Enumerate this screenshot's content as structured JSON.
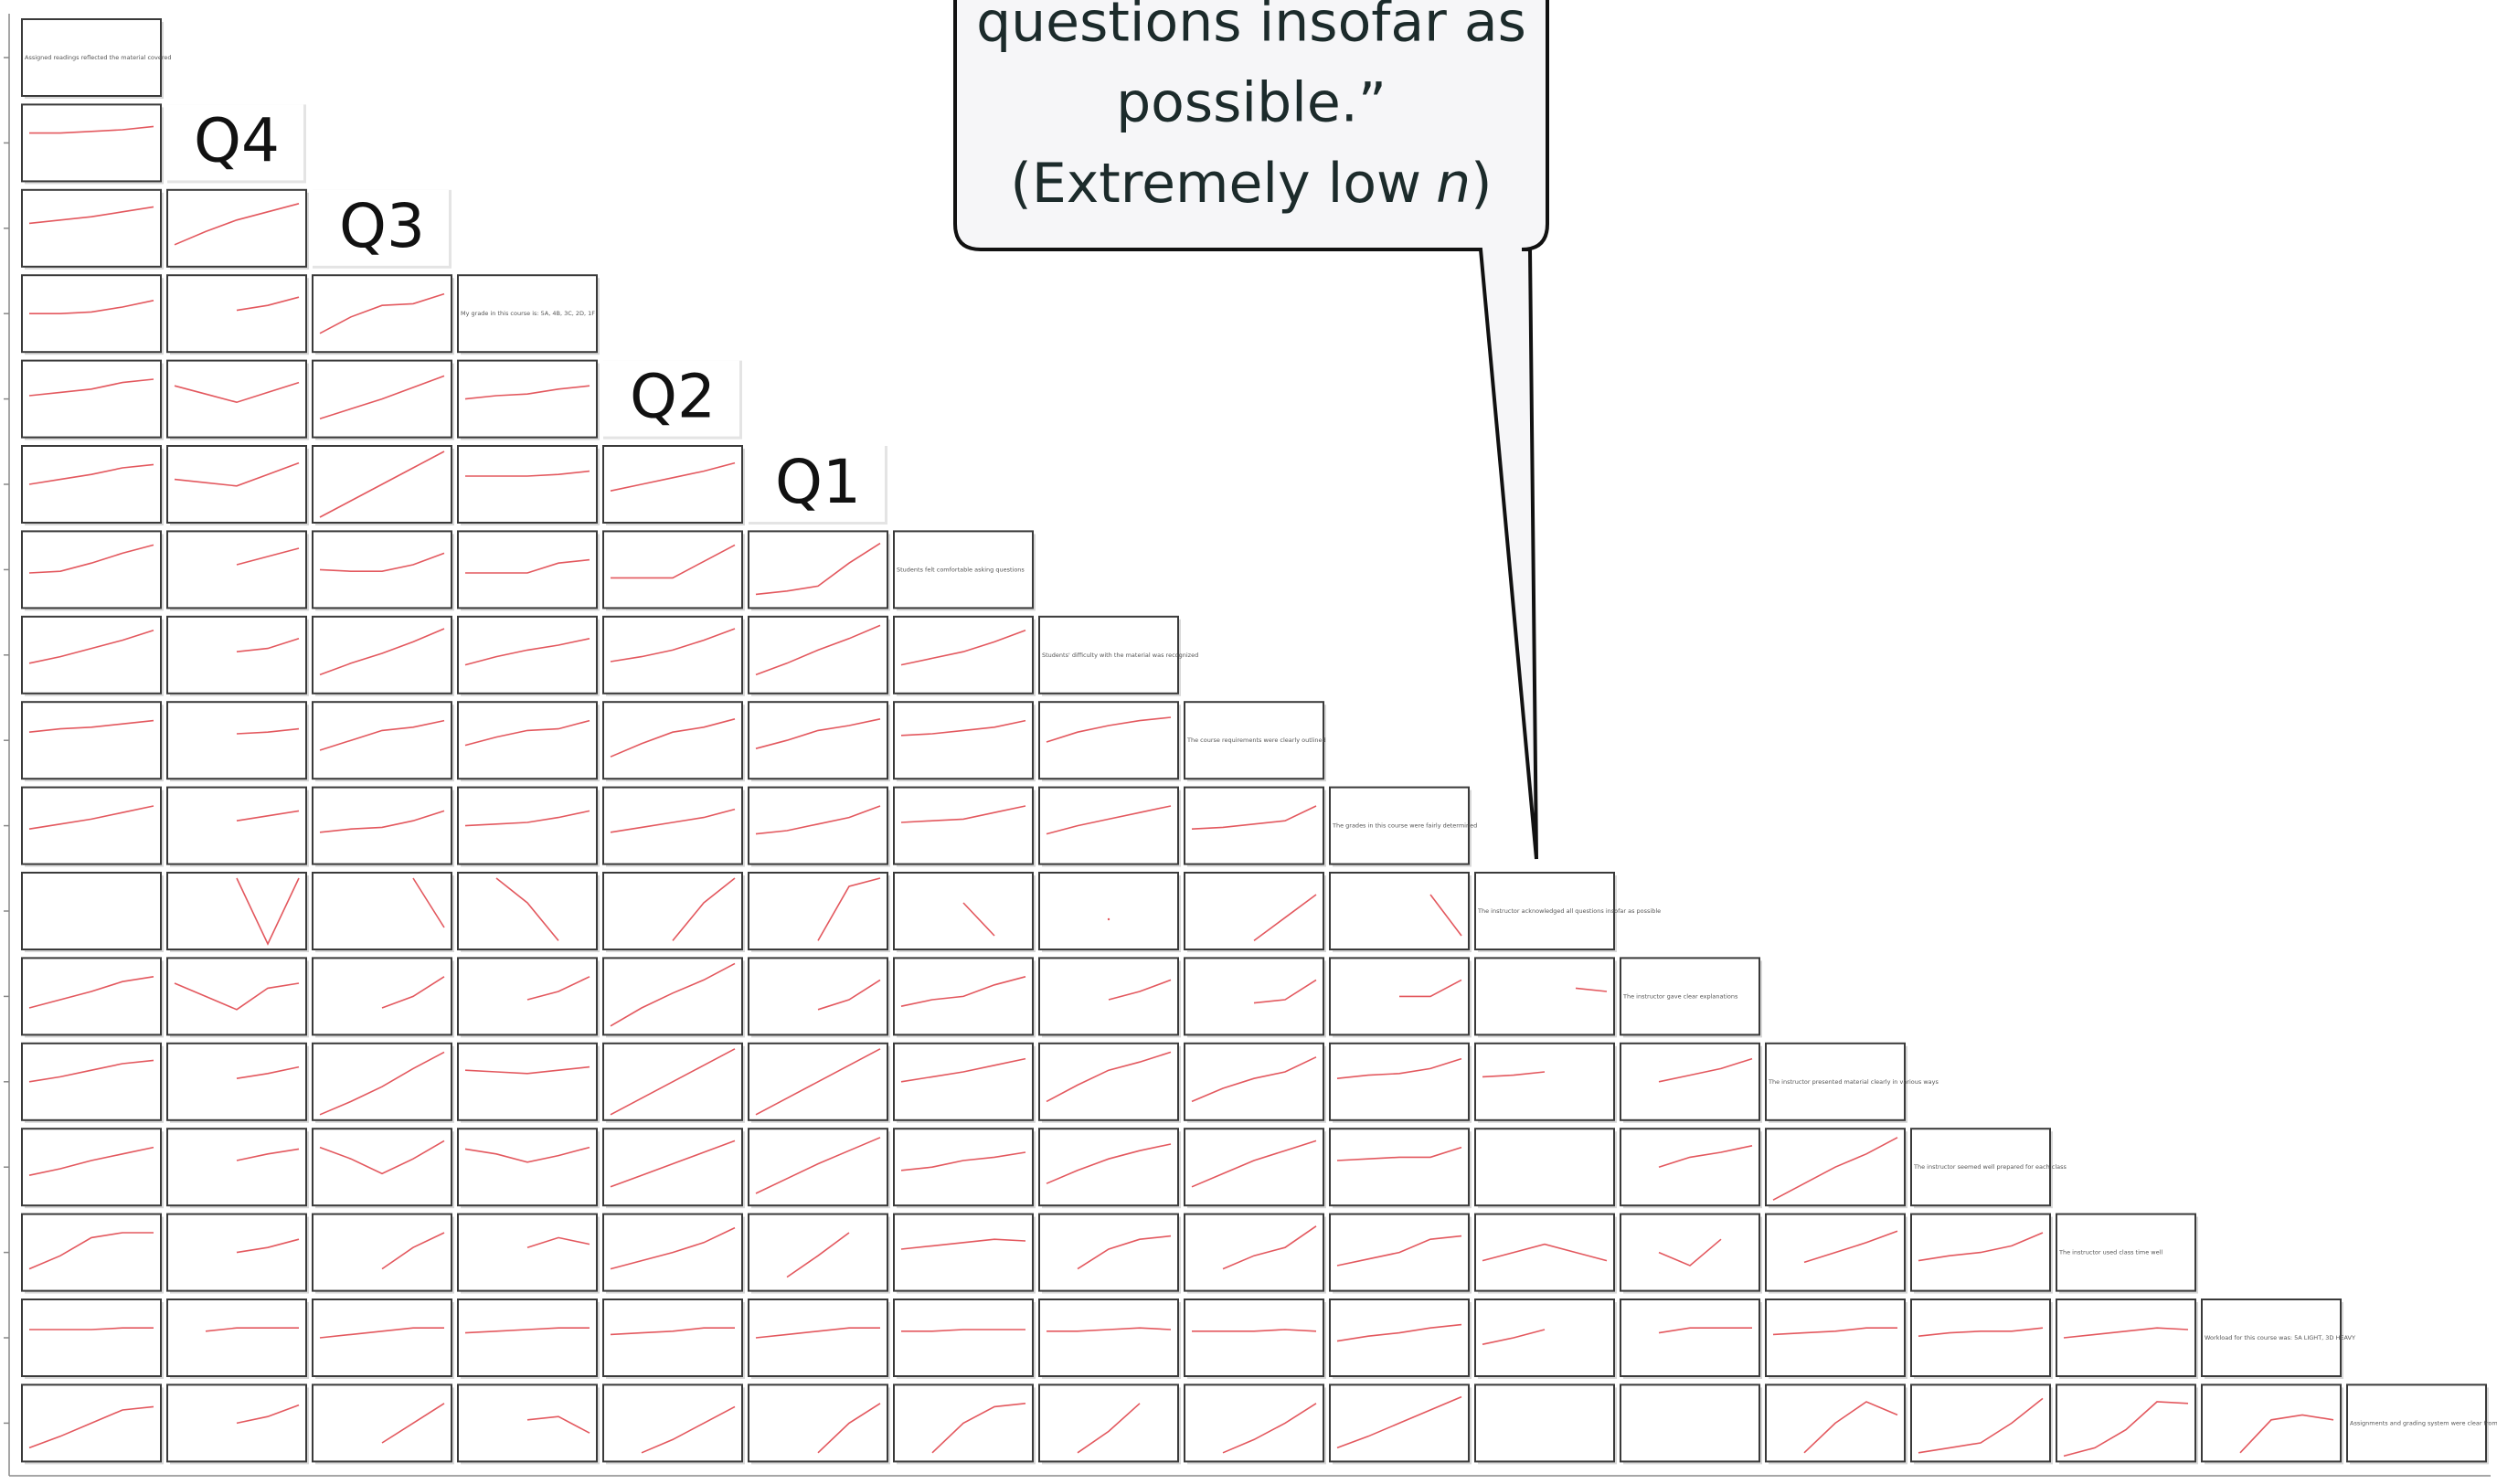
{
  "chart_data": {
    "type": "line-matrix",
    "ylim": [
      1,
      5
    ],
    "callout": {
      "lines": [
        "questions insofar as",
        "possible.”"
      ],
      "note": "(Extremely low",
      "note_italic": "n",
      "note_end": ")"
    },
    "rows": [
      {
        "diagonal": "Assigned readings reflected the material covered",
        "cells": []
      },
      {
        "label": "Q4",
        "cells": [
          [
            3.6,
            3.6,
            3.7,
            3.8,
            4
          ]
        ]
      },
      {
        "label": "Q3",
        "cells": [
          [
            3.3,
            3.5,
            3.7,
            4,
            4.3
          ],
          [
            2,
            2.8,
            3.5,
            4,
            4.5
          ]
        ]
      },
      {
        "diagonal": "My grade in this course is: 5A, 4B, 3C, 2D, 1F",
        "cells": [
          [
            3,
            3,
            3.1,
            3.4,
            3.8
          ],
          [
            null,
            null,
            3.2,
            3.5,
            4
          ],
          [
            1.8,
            2.8,
            3.5,
            3.6,
            4.2
          ]
        ]
      },
      {
        "label": "Q2",
        "cells": [
          [
            3.2,
            3.4,
            3.6,
            4,
            4.2
          ],
          [
            3.8,
            3.3,
            2.8,
            3.4,
            4
          ],
          [
            1.8,
            2.4,
            3,
            3.7,
            4.4
          ],
          [
            3,
            3.2,
            3.3,
            3.6,
            3.8
          ]
        ]
      },
      {
        "label": "Q1",
        "cells": [
          [
            3,
            3.3,
            3.6,
            4,
            4.2
          ],
          [
            3.3,
            3.1,
            2.9,
            3.6,
            4.3
          ],
          [
            1,
            2,
            3,
            4,
            5
          ],
          [
            3.5,
            3.5,
            3.5,
            3.6,
            3.8
          ],
          [
            2.6,
            3,
            3.4,
            3.8,
            4.3
          ]
        ]
      },
      {
        "diagonal": "Students felt comfortable asking questions",
        "cells": [
          [
            2.8,
            2.9,
            3.4,
            4,
            4.5
          ],
          [
            null,
            null,
            3.3,
            3.8,
            4.3
          ],
          [
            3,
            2.9,
            2.9,
            3.3,
            4
          ],
          [
            2.8,
            2.8,
            2.8,
            3.4,
            3.6
          ],
          [
            2.5,
            2.5,
            2.5,
            3.5,
            4.5
          ],
          [
            1.5,
            1.7,
            2,
            3.4,
            4.6
          ]
        ]
      },
      {
        "diagonal": "Students' difficulty with the material was recognized",
        "cells": [
          [
            2.5,
            2.9,
            3.4,
            3.9,
            4.5
          ],
          [
            null,
            null,
            3.2,
            3.4,
            4
          ],
          [
            1.8,
            2.5,
            3.1,
            3.8,
            4.6
          ],
          [
            2.4,
            2.9,
            3.3,
            3.6,
            4
          ],
          [
            2.6,
            2.9,
            3.3,
            3.9,
            4.6
          ],
          [
            1.8,
            2.5,
            3.3,
            4,
            4.8
          ],
          [
            2.4,
            2.8,
            3.2,
            3.8,
            4.5
          ]
        ]
      },
      {
        "diagonal": "The course requirements were clearly outlined",
        "cells": [
          [
            3.5,
            3.7,
            3.8,
            4,
            4.2
          ],
          [
            null,
            null,
            3.4,
            3.5,
            3.7
          ],
          [
            2.4,
            3,
            3.6,
            3.8,
            4.2
          ],
          [
            2.7,
            3.2,
            3.6,
            3.7,
            4.2
          ],
          [
            2,
            2.8,
            3.5,
            3.8,
            4.3
          ],
          [
            2.5,
            3,
            3.6,
            3.9,
            4.3
          ],
          [
            3.3,
            3.4,
            3.6,
            3.8,
            4.2
          ],
          [
            2.9,
            3.5,
            3.9,
            4.2,
            4.4
          ]
        ]
      },
      {
        "diagonal": "The grades in this course were fairly determined",
        "cells": [
          [
            2.8,
            3.1,
            3.4,
            3.8,
            4.2
          ],
          [
            null,
            null,
            3.3,
            3.6,
            3.9
          ],
          [
            2.6,
            2.8,
            2.9,
            3.3,
            3.9
          ],
          [
            3,
            3.1,
            3.2,
            3.5,
            3.9
          ],
          [
            2.6,
            2.9,
            3.2,
            3.5,
            4
          ],
          [
            2.5,
            2.7,
            3.1,
            3.5,
            4.2
          ],
          [
            3.2,
            3.3,
            3.4,
            3.8,
            4.2
          ],
          [
            2.5,
            3,
            3.4,
            3.8,
            4.2
          ],
          [
            2.8,
            2.9,
            3.1,
            3.3,
            4.2
          ]
        ]
      },
      {
        "diagonal": "The instructor acknowledged all questions insofar as possible",
        "cells": [
          [
            null,
            null,
            null,
            null,
            null
          ],
          [
            null,
            null,
            5,
            1,
            5
          ],
          [
            null,
            null,
            null,
            5,
            2
          ],
          [
            null,
            5,
            3.5,
            1.2,
            null
          ],
          [
            null,
            null,
            1.2,
            3.5,
            5
          ],
          [
            null,
            null,
            1.2,
            4.5,
            5
          ],
          [
            null,
            null,
            3.5,
            1.5,
            null
          ],
          [
            null,
            null,
            2.5,
            null,
            null
          ],
          [
            null,
            null,
            1.2,
            2.6,
            4
          ],
          [
            null,
            null,
            null,
            4,
            1.5
          ]
        ]
      },
      {
        "diagonal": "The instructor gave clear explanations",
        "cells": [
          [
            2.3,
            2.8,
            3.3,
            3.9,
            4.2
          ],
          [
            3.8,
            3,
            2.2,
            3.5,
            3.8
          ],
          [
            null,
            null,
            2.3,
            3,
            4.2
          ],
          [
            null,
            null,
            2.8,
            3.3,
            4.2
          ],
          [
            1.2,
            2.3,
            3.2,
            4,
            5
          ],
          [
            null,
            null,
            2.2,
            2.8,
            4
          ],
          [
            2.4,
            2.8,
            3,
            3.7,
            4.2
          ],
          [
            null,
            null,
            2.8,
            3.3,
            4
          ],
          [
            null,
            null,
            2.6,
            2.8,
            4
          ],
          [
            null,
            null,
            3,
            3,
            4
          ],
          [
            null,
            null,
            null,
            3.5,
            3.3
          ]
        ]
      },
      {
        "diagonal": "The instructor presented material clearly in various ways",
        "cells": [
          [
            3,
            3.3,
            3.7,
            4.1,
            4.3
          ],
          [
            null,
            null,
            3.2,
            3.5,
            3.9
          ],
          [
            1,
            1.8,
            2.7,
            3.8,
            4.8
          ],
          [
            3.7,
            3.6,
            3.5,
            3.7,
            3.9
          ],
          [
            1,
            2,
            3,
            4,
            5
          ],
          [
            1,
            2,
            3,
            4,
            5
          ],
          [
            3,
            3.3,
            3.6,
            4,
            4.4
          ],
          [
            1.8,
            2.8,
            3.7,
            4.2,
            4.8
          ],
          [
            1.8,
            2.6,
            3.2,
            3.6,
            4.5
          ],
          [
            3.2,
            3.4,
            3.5,
            3.8,
            4.4
          ],
          [
            3.3,
            3.4,
            3.6,
            null,
            null
          ],
          [
            null,
            3,
            3.4,
            3.8,
            4.4
          ]
        ]
      },
      {
        "diagonal": "The instructor seemed well prepared for each class",
        "cells": [
          [
            2.5,
            2.9,
            3.4,
            3.8,
            4.2
          ],
          [
            null,
            null,
            3.4,
            3.8,
            4.1
          ],
          [
            4.2,
            3.5,
            2.6,
            3.5,
            4.6
          ],
          [
            4.1,
            3.8,
            3.3,
            3.7,
            4.2
          ],
          [
            1.8,
            2.5,
            3.2,
            3.9,
            4.6
          ],
          [
            1.4,
            2.3,
            3.2,
            4,
            4.8
          ],
          [
            2.8,
            3,
            3.4,
            3.6,
            3.9
          ],
          [
            2,
            2.8,
            3.5,
            4,
            4.4
          ],
          [
            1.8,
            2.6,
            3.4,
            4,
            4.6
          ],
          [
            3.4,
            3.5,
            3.6,
            3.6,
            4.2
          ],
          [
            null,
            null,
            null,
            null,
            null
          ],
          [
            null,
            3,
            3.6,
            3.9,
            4.3
          ],
          [
            1,
            2,
            3,
            3.8,
            4.8
          ]
        ]
      },
      {
        "diagonal": "The instructor used class time well",
        "cells": [
          [
            2,
            2.8,
            3.9,
            4.2,
            4.2
          ],
          [
            null,
            null,
            3,
            3.3,
            3.8
          ],
          [
            null,
            null,
            2,
            3.3,
            4.2
          ],
          [
            null,
            null,
            3.3,
            3.9,
            3.5
          ],
          [
            2,
            2.5,
            3,
            3.6,
            4.5
          ],
          [
            null,
            1.5,
            2.8,
            4.2,
            null
          ],
          [
            3.2,
            3.4,
            3.6,
            3.8,
            3.7
          ],
          [
            null,
            2,
            3.2,
            3.8,
            4
          ],
          [
            null,
            2,
            2.8,
            3.3,
            4.6
          ],
          [
            2.2,
            2.6,
            3,
            3.8,
            4
          ],
          [
            2.5,
            3,
            3.5,
            3,
            2.5
          ],
          [
            null,
            3,
            2.2,
            3.8,
            null
          ],
          [
            null,
            2.4,
            3,
            3.6,
            4.3
          ],
          [
            2.5,
            2.8,
            3,
            3.4,
            4.2
          ]
        ]
      },
      {
        "diagonal": "Workload for this course was: 5A LIGHT, 3D HEAVY",
        "cells": [
          [
            3.5,
            3.5,
            3.5,
            3.6,
            3.6
          ],
          [
            null,
            3.4,
            3.6,
            3.6,
            3.6
          ],
          [
            3,
            3.2,
            3.4,
            3.6,
            3.6
          ],
          [
            3.3,
            3.4,
            3.5,
            3.6,
            3.6
          ],
          [
            3.2,
            3.3,
            3.4,
            3.6,
            3.6
          ],
          [
            3,
            3.2,
            3.4,
            3.6,
            3.6
          ],
          [
            3.4,
            3.4,
            3.5,
            3.5,
            3.5
          ],
          [
            3.4,
            3.4,
            3.5,
            3.6,
            3.5
          ],
          [
            3.4,
            3.4,
            3.4,
            3.5,
            3.4
          ],
          [
            2.8,
            3.1,
            3.3,
            3.6,
            3.8
          ],
          [
            2.6,
            3,
            3.5,
            null,
            null
          ],
          [
            null,
            3.3,
            3.6,
            3.6,
            3.6
          ],
          [
            3.2,
            3.3,
            3.4,
            3.6,
            3.6
          ],
          [
            3.1,
            3.3,
            3.4,
            3.4,
            3.6
          ],
          [
            3,
            3.2,
            3.4,
            3.6,
            3.5
          ]
        ]
      },
      {
        "diagonal": "Assignments and grading system were clear from the start",
        "cells": [
          [
            1.5,
            2.2,
            3,
            3.8,
            4
          ],
          [
            null,
            null,
            3,
            3.4,
            4.1
          ],
          [
            null,
            null,
            1.8,
            3,
            4.2
          ],
          [
            null,
            null,
            3.2,
            3.4,
            2.4
          ],
          [
            null,
            1.2,
            2,
            3,
            4
          ],
          [
            null,
            null,
            1.2,
            3,
            4.2
          ],
          [
            null,
            1.2,
            3,
            4,
            4.2
          ],
          [
            null,
            1.2,
            2.5,
            4.2,
            null
          ],
          [
            null,
            1.2,
            2,
            3,
            4.2
          ],
          [
            1.5,
            2.2,
            3,
            3.8,
            4.6
          ],
          [
            null,
            null,
            null,
            null,
            null
          ],
          [
            null,
            null,
            null,
            null,
            null
          ],
          [
            null,
            1.2,
            3,
            4.3,
            3.5
          ],
          [
            1.2,
            1.5,
            1.8,
            3,
            4.5
          ],
          [
            1,
            1.5,
            2.6,
            4.3,
            4.2
          ],
          [
            null,
            1.2,
            3.2,
            3.5,
            3.2
          ]
        ]
      }
    ]
  }
}
